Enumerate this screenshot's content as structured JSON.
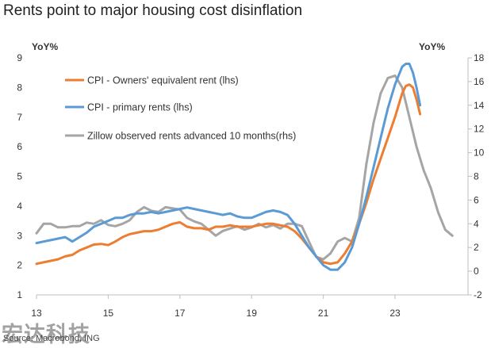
{
  "title": "Rents point to major housing cost disinflation",
  "source": "Source: Macrobond, ING",
  "watermark": "宏达科技",
  "chart_data": {
    "type": "line",
    "title": "Rents point to major housing cost disinflation",
    "left_axis": {
      "label": "YoY%",
      "range": [
        1,
        9
      ],
      "ticks": [
        "1",
        "2",
        "3",
        "4",
        "5",
        "6",
        "7",
        "8",
        "9"
      ]
    },
    "right_axis": {
      "label": "YoY%",
      "range": [
        -2,
        18
      ],
      "ticks": [
        "-2",
        "0",
        "2",
        "4",
        "6",
        "8",
        "10",
        "12",
        "14",
        "16",
        "18"
      ]
    },
    "x_axis": {
      "range": [
        13,
        24.6
      ],
      "ticks": [
        "13",
        "15",
        "17",
        "19",
        "21",
        "23"
      ]
    },
    "grid": false,
    "legend_position": "top-left",
    "series": [
      {
        "name": "CPI - Owners' equivalent rent (lhs)",
        "axis": "left",
        "color": "#ED7D31",
        "points": [
          [
            13.0,
            2.05
          ],
          [
            13.2,
            2.1
          ],
          [
            13.4,
            2.15
          ],
          [
            13.6,
            2.2
          ],
          [
            13.8,
            2.3
          ],
          [
            14.0,
            2.35
          ],
          [
            14.2,
            2.5
          ],
          [
            14.4,
            2.6
          ],
          [
            14.6,
            2.7
          ],
          [
            14.8,
            2.72
          ],
          [
            15.0,
            2.68
          ],
          [
            15.2,
            2.8
          ],
          [
            15.4,
            2.95
          ],
          [
            15.6,
            3.05
          ],
          [
            15.8,
            3.1
          ],
          [
            16.0,
            3.15
          ],
          [
            16.2,
            3.15
          ],
          [
            16.4,
            3.2
          ],
          [
            16.6,
            3.3
          ],
          [
            16.8,
            3.4
          ],
          [
            17.0,
            3.45
          ],
          [
            17.2,
            3.3
          ],
          [
            17.4,
            3.25
          ],
          [
            17.6,
            3.25
          ],
          [
            17.8,
            3.2
          ],
          [
            18.0,
            3.3
          ],
          [
            18.2,
            3.3
          ],
          [
            18.4,
            3.35
          ],
          [
            18.6,
            3.3
          ],
          [
            18.8,
            3.3
          ],
          [
            19.0,
            3.3
          ],
          [
            19.2,
            3.35
          ],
          [
            19.4,
            3.4
          ],
          [
            19.6,
            3.4
          ],
          [
            19.8,
            3.35
          ],
          [
            20.0,
            3.3
          ],
          [
            20.2,
            3.15
          ],
          [
            20.4,
            2.9
          ],
          [
            20.6,
            2.6
          ],
          [
            20.8,
            2.3
          ],
          [
            21.0,
            2.1
          ],
          [
            21.2,
            2.05
          ],
          [
            21.4,
            2.1
          ],
          [
            21.6,
            2.4
          ],
          [
            21.8,
            2.8
          ],
          [
            22.0,
            3.4
          ],
          [
            22.2,
            4.1
          ],
          [
            22.4,
            4.9
          ],
          [
            22.6,
            5.6
          ],
          [
            22.8,
            6.3
          ],
          [
            23.0,
            7.0
          ],
          [
            23.2,
            7.8
          ],
          [
            23.3,
            8.05
          ],
          [
            23.4,
            8.1
          ],
          [
            23.5,
            8.0
          ],
          [
            23.6,
            7.6
          ],
          [
            23.7,
            7.1
          ]
        ]
      },
      {
        "name": "CPI - primary rents (lhs)",
        "axis": "left",
        "color": "#5B9BD5",
        "points": [
          [
            13.0,
            2.75
          ],
          [
            13.2,
            2.8
          ],
          [
            13.4,
            2.85
          ],
          [
            13.6,
            2.9
          ],
          [
            13.8,
            2.95
          ],
          [
            14.0,
            2.8
          ],
          [
            14.2,
            2.95
          ],
          [
            14.4,
            3.1
          ],
          [
            14.6,
            3.3
          ],
          [
            14.8,
            3.4
          ],
          [
            15.0,
            3.5
          ],
          [
            15.2,
            3.6
          ],
          [
            15.4,
            3.6
          ],
          [
            15.6,
            3.7
          ],
          [
            15.8,
            3.75
          ],
          [
            16.0,
            3.75
          ],
          [
            16.2,
            3.8
          ],
          [
            16.4,
            3.75
          ],
          [
            16.6,
            3.8
          ],
          [
            16.8,
            3.85
          ],
          [
            17.0,
            3.9
          ],
          [
            17.2,
            3.95
          ],
          [
            17.4,
            3.9
          ],
          [
            17.6,
            3.85
          ],
          [
            17.8,
            3.8
          ],
          [
            18.0,
            3.75
          ],
          [
            18.2,
            3.7
          ],
          [
            18.4,
            3.75
          ],
          [
            18.6,
            3.65
          ],
          [
            18.8,
            3.6
          ],
          [
            19.0,
            3.6
          ],
          [
            19.2,
            3.7
          ],
          [
            19.4,
            3.8
          ],
          [
            19.6,
            3.85
          ],
          [
            19.8,
            3.8
          ],
          [
            20.0,
            3.7
          ],
          [
            20.2,
            3.4
          ],
          [
            20.4,
            3.0
          ],
          [
            20.6,
            2.6
          ],
          [
            20.8,
            2.3
          ],
          [
            21.0,
            2.0
          ],
          [
            21.2,
            1.85
          ],
          [
            21.4,
            1.85
          ],
          [
            21.6,
            2.1
          ],
          [
            21.8,
            2.6
          ],
          [
            22.0,
            3.4
          ],
          [
            22.2,
            4.3
          ],
          [
            22.4,
            5.3
          ],
          [
            22.6,
            6.3
          ],
          [
            22.8,
            7.3
          ],
          [
            23.0,
            8.1
          ],
          [
            23.2,
            8.7
          ],
          [
            23.3,
            8.8
          ],
          [
            23.4,
            8.8
          ],
          [
            23.5,
            8.5
          ],
          [
            23.6,
            8.0
          ],
          [
            23.7,
            7.4
          ]
        ]
      },
      {
        "name": "Zillow observed rents advanced 10 months(rhs)",
        "axis": "right",
        "color": "#A5A5A5",
        "points": [
          [
            13.0,
            3.2
          ],
          [
            13.2,
            4.0
          ],
          [
            13.4,
            4.0
          ],
          [
            13.6,
            3.7
          ],
          [
            13.8,
            3.7
          ],
          [
            14.0,
            3.8
          ],
          [
            14.2,
            3.8
          ],
          [
            14.4,
            4.1
          ],
          [
            14.6,
            4.0
          ],
          [
            14.8,
            4.3
          ],
          [
            15.0,
            3.9
          ],
          [
            15.2,
            3.8
          ],
          [
            15.4,
            4.0
          ],
          [
            15.6,
            4.3
          ],
          [
            15.8,
            5.0
          ],
          [
            16.0,
            5.4
          ],
          [
            16.2,
            5.1
          ],
          [
            16.4,
            5.0
          ],
          [
            16.6,
            5.4
          ],
          [
            16.8,
            5.3
          ],
          [
            17.0,
            5.2
          ],
          [
            17.2,
            4.5
          ],
          [
            17.4,
            4.2
          ],
          [
            17.6,
            4.0
          ],
          [
            17.8,
            3.5
          ],
          [
            18.0,
            3.0
          ],
          [
            18.2,
            3.4
          ],
          [
            18.4,
            3.6
          ],
          [
            18.6,
            3.8
          ],
          [
            18.8,
            3.5
          ],
          [
            19.0,
            3.7
          ],
          [
            19.2,
            4.0
          ],
          [
            19.4,
            3.7
          ],
          [
            19.6,
            3.9
          ],
          [
            19.8,
            3.6
          ],
          [
            20.0,
            4.0
          ],
          [
            20.2,
            4.0
          ],
          [
            20.4,
            3.8
          ],
          [
            20.6,
            2.5
          ],
          [
            20.8,
            1.2
          ],
          [
            21.0,
            1.0
          ],
          [
            21.2,
            1.5
          ],
          [
            21.4,
            2.5
          ],
          [
            21.6,
            2.8
          ],
          [
            21.8,
            2.5
          ],
          [
            22.0,
            4.5
          ],
          [
            22.2,
            9.0
          ],
          [
            22.4,
            12.5
          ],
          [
            22.6,
            15.0
          ],
          [
            22.8,
            16.3
          ],
          [
            23.0,
            16.5
          ],
          [
            23.2,
            15.5
          ],
          [
            23.4,
            13.0
          ],
          [
            23.6,
            10.5
          ],
          [
            23.8,
            8.5
          ],
          [
            24.0,
            7.0
          ],
          [
            24.2,
            5.0
          ],
          [
            24.4,
            3.5
          ],
          [
            24.6,
            3.0
          ]
        ]
      }
    ]
  }
}
